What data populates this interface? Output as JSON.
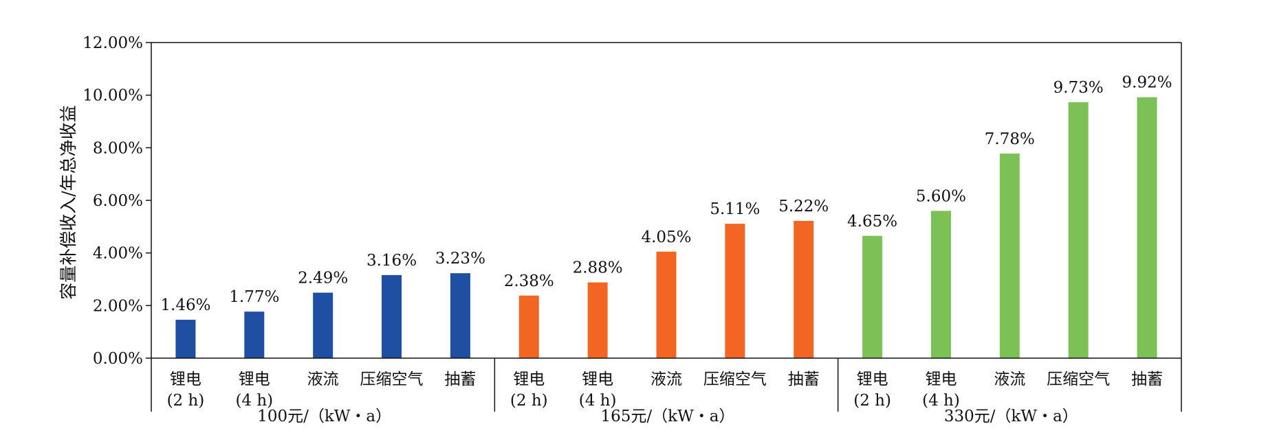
{
  "chart_data": {
    "type": "bar",
    "ylabel": "容量补偿收入/年总净收益",
    "ylim": [
      0,
      12
    ],
    "yticks": [
      "0.00%",
      "2.00%",
      "4.00%",
      "6.00%",
      "8.00%",
      "10.00%",
      "12.00%"
    ],
    "colors": [
      "#1f4fa3",
      "#f26522",
      "#7bc156"
    ],
    "groups": [
      {
        "label": "100元/（kW・a）",
        "color": "#1f4fa3",
        "bars": [
          {
            "cat": [
              "锂电",
              "(2 h)"
            ],
            "value": 1.46,
            "label": "1.46%"
          },
          {
            "cat": [
              "锂电",
              "(4 h)"
            ],
            "value": 1.77,
            "label": "1.77%"
          },
          {
            "cat": [
              "液流"
            ],
            "value": 2.49,
            "label": "2.49%"
          },
          {
            "cat": [
              "压缩空气"
            ],
            "value": 3.16,
            "label": "3.16%"
          },
          {
            "cat": [
              "抽蓄"
            ],
            "value": 3.23,
            "label": "3.23%"
          }
        ]
      },
      {
        "label": "165元/（kW・a）",
        "color": "#f26522",
        "bars": [
          {
            "cat": [
              "锂电",
              "(2 h)"
            ],
            "value": 2.38,
            "label": "2.38%"
          },
          {
            "cat": [
              "锂电",
              "(4 h)"
            ],
            "value": 2.88,
            "label": "2.88%"
          },
          {
            "cat": [
              "液流"
            ],
            "value": 4.05,
            "label": "4.05%"
          },
          {
            "cat": [
              "压缩空气"
            ],
            "value": 5.11,
            "label": "5.11%"
          },
          {
            "cat": [
              "抽蓄"
            ],
            "value": 5.22,
            "label": "5.22%"
          }
        ]
      },
      {
        "label": "330元/（kW・a）",
        "color": "#7bc156",
        "bars": [
          {
            "cat": [
              "锂电",
              "(2 h)"
            ],
            "value": 4.65,
            "label": "4.65%"
          },
          {
            "cat": [
              "锂电",
              "(4 h)"
            ],
            "value": 5.6,
            "label": "5.60%"
          },
          {
            "cat": [
              "液流"
            ],
            "value": 7.78,
            "label": "7.78%"
          },
          {
            "cat": [
              "压缩空气"
            ],
            "value": 9.73,
            "label": "9.73%"
          },
          {
            "cat": [
              "抽蓄"
            ],
            "value": 9.92,
            "label": "9.92%"
          }
        ]
      }
    ]
  }
}
